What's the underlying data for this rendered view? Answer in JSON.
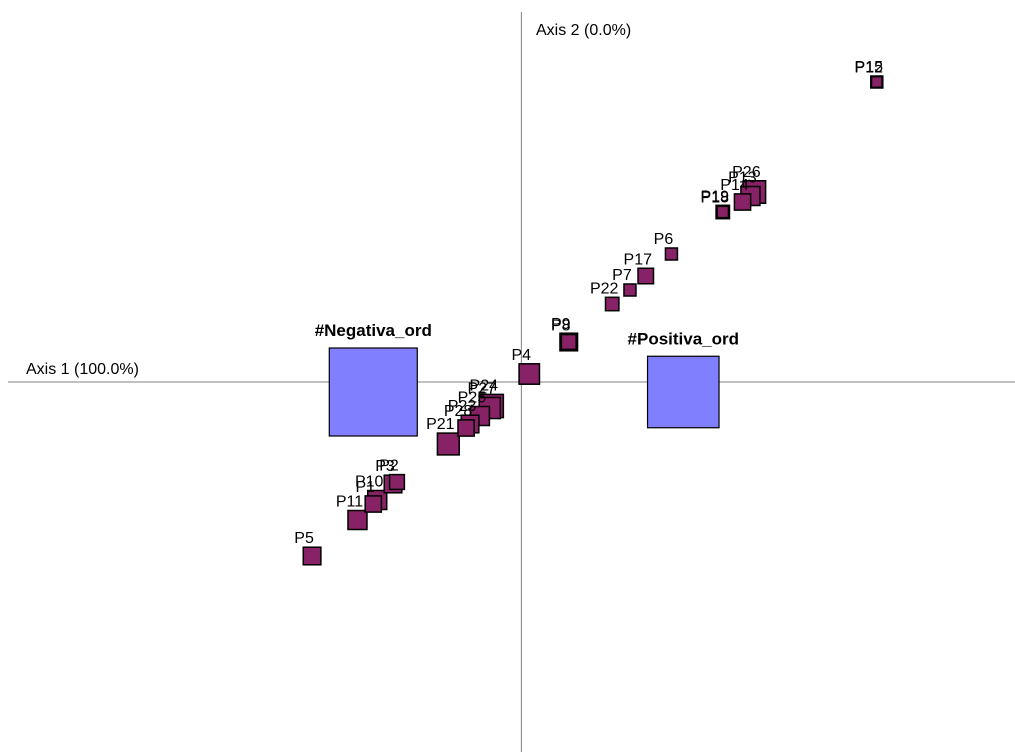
{
  "chart_data": {
    "type": "scatter",
    "x_axis_label": "Axis 1 (100.0%)",
    "y_axis_label": "Axis 2 (0.0%)",
    "xlim": [
      -2.6,
      2.5
    ],
    "ylim": [
      -1.85,
      1.85
    ],
    "grid": false,
    "legend": "none",
    "colors": {
      "point_fill": "#882266",
      "point_stroke": "#000000",
      "category_fill": "#8080ff",
      "category_stroke": "#000000",
      "axis": "#808080"
    },
    "categories": [
      {
        "label": "#Negativa_ord",
        "x": -0.75,
        "y": -0.05,
        "weight": 8.0
      },
      {
        "label": "#Positiva_ord",
        "x": 0.82,
        "y": -0.05,
        "weight": 6.5
      }
    ],
    "points": [
      {
        "label": "P15",
        "x": 1.8,
        "y": 1.5,
        "weight": 1.0
      },
      {
        "label": "P12",
        "x": 1.8,
        "y": 1.5,
        "weight": 0.8
      },
      {
        "label": "P26",
        "x": 1.18,
        "y": 0.95,
        "weight": 2.5
      },
      {
        "label": "P13",
        "x": 1.16,
        "y": 0.93,
        "weight": 2.0
      },
      {
        "label": "P14",
        "x": 1.12,
        "y": 0.9,
        "weight": 1.6
      },
      {
        "label": "P19",
        "x": 1.02,
        "y": 0.85,
        "weight": 1.2
      },
      {
        "label": "P18",
        "x": 1.02,
        "y": 0.85,
        "weight": 0.9
      },
      {
        "label": "P6",
        "x": 0.76,
        "y": 0.64,
        "weight": 1.0
      },
      {
        "label": "P17",
        "x": 0.63,
        "y": 0.53,
        "weight": 1.5
      },
      {
        "label": "P7",
        "x": 0.55,
        "y": 0.46,
        "weight": 1.0
      },
      {
        "label": "P22",
        "x": 0.46,
        "y": 0.39,
        "weight": 1.2
      },
      {
        "label": "P9",
        "x": 0.24,
        "y": 0.2,
        "weight": 1.8
      },
      {
        "label": "P8",
        "x": 0.24,
        "y": 0.2,
        "weight": 1.4
      },
      {
        "label": "P4",
        "x": 0.04,
        "y": 0.04,
        "weight": 2.2
      },
      {
        "label": "P24",
        "x": -0.15,
        "y": -0.12,
        "weight": 2.6
      },
      {
        "label": "P27",
        "x": -0.16,
        "y": -0.13,
        "weight": 2.3
      },
      {
        "label": "P25",
        "x": -0.21,
        "y": -0.17,
        "weight": 2.0
      },
      {
        "label": "P23",
        "x": -0.26,
        "y": -0.21,
        "weight": 1.8
      },
      {
        "label": "P28",
        "x": -0.28,
        "y": -0.23,
        "weight": 1.6
      },
      {
        "label": "P21",
        "x": -0.37,
        "y": -0.31,
        "weight": 2.4
      },
      {
        "label": "P3",
        "x": -0.65,
        "y": -0.51,
        "weight": 1.8
      },
      {
        "label": "P2",
        "x": -0.63,
        "y": -0.5,
        "weight": 1.4
      },
      {
        "label": "P10",
        "x": -0.73,
        "y": -0.59,
        "weight": 2.0
      },
      {
        "label": "P1",
        "x": -0.75,
        "y": -0.61,
        "weight": 1.6
      },
      {
        "label": "P11",
        "x": -0.83,
        "y": -0.69,
        "weight": 2.0
      },
      {
        "label": "P5",
        "x": -1.06,
        "y": -0.87,
        "weight": 1.8
      }
    ]
  }
}
